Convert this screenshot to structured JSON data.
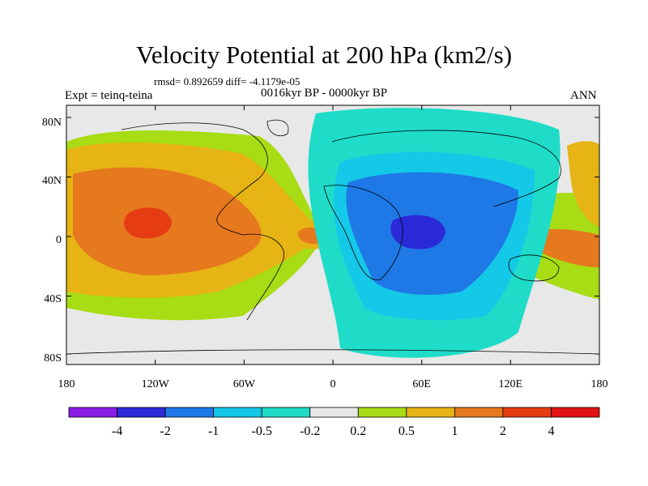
{
  "title": "Velocity Potential at 200 hPa (km2/s)",
  "stats": "rmsd= 0.892659 diff= -4.1179e-05",
  "left_label": "Expt = teinq-teina",
  "center_label": "0016kyr BP - 0000kyr BP",
  "right_label": "ANN",
  "lat_ticks": [
    "80N",
    "40N",
    "0",
    "40S",
    "80S"
  ],
  "lon_ticks": [
    "180",
    "120W",
    "60W",
    "0",
    "60E",
    "120E",
    "180"
  ],
  "colorbar": {
    "labels": [
      "-4",
      "-2",
      "-1",
      "-0.5",
      "-0.2",
      "0.2",
      "0.5",
      "1",
      "2",
      "4"
    ],
    "colors": [
      "#8a1ee6",
      "#2a2ad8",
      "#1e78e6",
      "#14c8e8",
      "#1edcc8",
      "#e8e8e8",
      "#a8dc14",
      "#e6b414",
      "#e6781e",
      "#e63c14",
      "#e01414"
    ]
  }
}
